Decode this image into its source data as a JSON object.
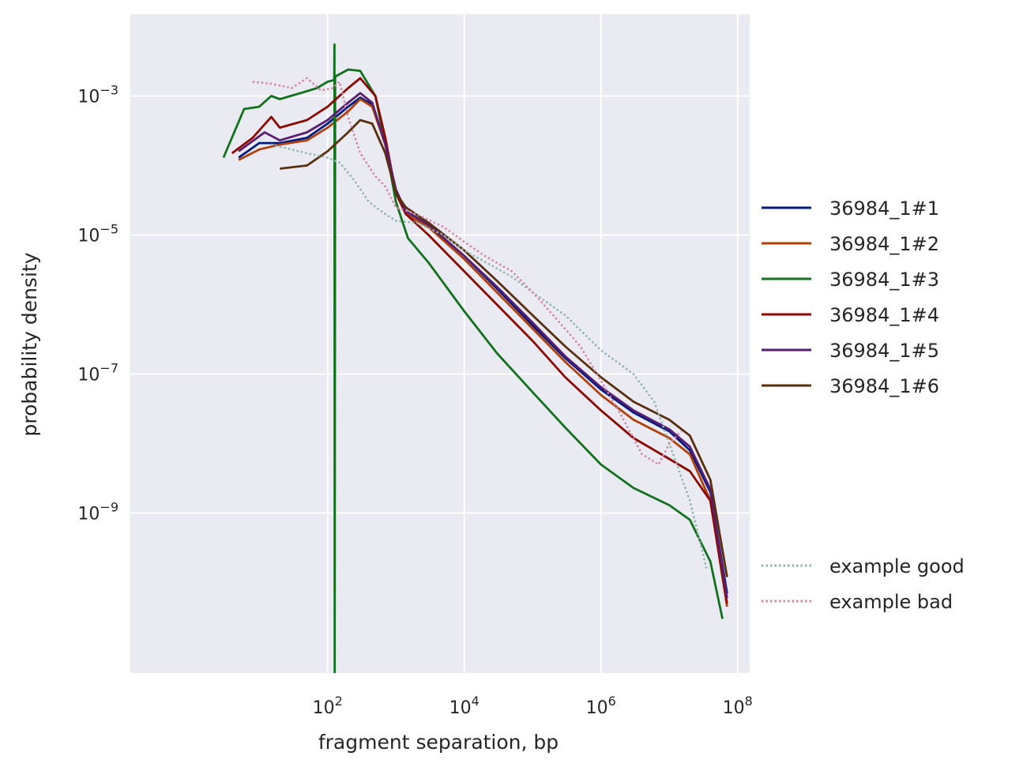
{
  "chart_data": {
    "type": "line",
    "xlabel": "fragment separation, bp",
    "ylabel": "probability density",
    "xscale": "log",
    "yscale": "log",
    "xlim": [
      0.13,
      150000000.0
    ],
    "ylim": [
      5e-12,
      0.015
    ],
    "x_ticks": [
      {
        "value": 100,
        "base": "10",
        "exp": "2"
      },
      {
        "value": 10000,
        "base": "10",
        "exp": "4"
      },
      {
        "value": 1000000,
        "base": "10",
        "exp": "6"
      },
      {
        "value": 100000000,
        "base": "10",
        "exp": "8"
      }
    ],
    "y_ticks": [
      {
        "value": 0.001,
        "base": "10",
        "exp": "−3"
      },
      {
        "value": 1e-05,
        "base": "10",
        "exp": "−5"
      },
      {
        "value": 1e-07,
        "base": "10",
        "exp": "−7"
      },
      {
        "value": 1e-09,
        "base": "10",
        "exp": "−9"
      }
    ],
    "grid": true,
    "background": "#eaeaf2",
    "legend_position": "right",
    "series": [
      {
        "name": "36984_1#1",
        "color": "#001c7f",
        "style": "solid",
        "points": [
          [
            5,
            0.00013
          ],
          [
            10,
            0.00021
          ],
          [
            20,
            0.00021
          ],
          [
            50,
            0.00025
          ],
          [
            100,
            0.0004
          ],
          [
            200,
            0.0007
          ],
          [
            300,
            0.00095
          ],
          [
            450,
            0.00075
          ],
          [
            700,
            0.0002
          ],
          [
            1000,
            4e-05
          ],
          [
            1400,
            2.2e-05
          ],
          [
            3000,
            1.4e-05
          ],
          [
            10000,
            5e-06
          ],
          [
            30000,
            1.7e-06
          ],
          [
            100000,
            5e-07
          ],
          [
            300000,
            1.7e-07
          ],
          [
            1000000,
            6e-08
          ],
          [
            3000000,
            2.8e-08
          ],
          [
            10000000,
            1.5e-08
          ],
          [
            20000000,
            8e-09
          ],
          [
            40000000,
            2e-09
          ],
          [
            70000000,
            7e-11
          ]
        ]
      },
      {
        "name": "36984_1#2",
        "color": "#b1400d",
        "style": "solid",
        "points": [
          [
            5,
            0.00012
          ],
          [
            10,
            0.00017
          ],
          [
            20,
            0.0002
          ],
          [
            50,
            0.00023
          ],
          [
            100,
            0.00035
          ],
          [
            200,
            0.0006
          ],
          [
            300,
            0.0009
          ],
          [
            450,
            0.0007
          ],
          [
            700,
            0.0002
          ],
          [
            1000,
            4e-05
          ],
          [
            1400,
            2e-05
          ],
          [
            3000,
            1.3e-05
          ],
          [
            10000,
            4.5e-06
          ],
          [
            30000,
            1.5e-06
          ],
          [
            100000,
            4.5e-07
          ],
          [
            300000,
            1.5e-07
          ],
          [
            1000000,
            5e-08
          ],
          [
            3000000,
            2.2e-08
          ],
          [
            10000000,
            1.2e-08
          ],
          [
            20000000,
            7e-09
          ],
          [
            40000000,
            1.5e-09
          ],
          [
            70000000,
            4.5e-11
          ]
        ]
      },
      {
        "name": "36984_1#3",
        "color": "#12711c",
        "style": "solid",
        "points": [
          [
            3,
            0.00013
          ],
          [
            6,
            0.00065
          ],
          [
            10,
            0.0007
          ],
          [
            15,
            0.001
          ],
          [
            20,
            0.0009
          ],
          [
            40,
            0.0011
          ],
          [
            70,
            0.0013
          ],
          [
            100,
            0.0016
          ],
          [
            125,
            0.0017
          ],
          [
            126,
            0.0055
          ],
          [
            127,
            5e-12
          ],
          [
            129,
            0.0019
          ],
          [
            200,
            0.0024
          ],
          [
            300,
            0.0023
          ],
          [
            500,
            0.001
          ],
          [
            700,
            0.0002
          ],
          [
            1000,
            3e-05
          ],
          [
            1500,
            9e-06
          ],
          [
            3000,
            4e-06
          ],
          [
            10000,
            8e-07
          ],
          [
            30000,
            2e-07
          ],
          [
            100000,
            5.5e-08
          ],
          [
            300000,
            1.7e-08
          ],
          [
            1000000,
            5e-09
          ],
          [
            3000000,
            2.3e-09
          ],
          [
            10000000,
            1.3e-09
          ],
          [
            20000000,
            8e-10
          ],
          [
            40000000,
            2e-10
          ],
          [
            60000000,
            3e-11
          ]
        ]
      },
      {
        "name": "36984_1#4",
        "color": "#8c0800",
        "style": "solid",
        "points": [
          [
            4,
            0.00015
          ],
          [
            8,
            0.00025
          ],
          [
            15,
            0.0005
          ],
          [
            20,
            0.00035
          ],
          [
            50,
            0.00045
          ],
          [
            100,
            0.0007
          ],
          [
            200,
            0.0013
          ],
          [
            300,
            0.0018
          ],
          [
            500,
            0.001
          ],
          [
            700,
            0.00025
          ],
          [
            1000,
            4e-05
          ],
          [
            1400,
            2e-05
          ],
          [
            3000,
            1e-05
          ],
          [
            10000,
            3e-06
          ],
          [
            30000,
            1e-06
          ],
          [
            100000,
            3e-07
          ],
          [
            300000,
            9e-08
          ],
          [
            1000000,
            3e-08
          ],
          [
            3000000,
            1.2e-08
          ],
          [
            10000000,
            6e-09
          ],
          [
            20000000,
            4e-09
          ],
          [
            40000000,
            1.5e-09
          ],
          [
            70000000,
            5e-11
          ]
        ]
      },
      {
        "name": "36984_1#5",
        "color": "#591e71",
        "style": "solid",
        "points": [
          [
            5,
            0.00016
          ],
          [
            12,
            0.0003
          ],
          [
            20,
            0.00023
          ],
          [
            50,
            0.0003
          ],
          [
            100,
            0.00045
          ],
          [
            200,
            0.0008
          ],
          [
            300,
            0.0011
          ],
          [
            450,
            0.0008
          ],
          [
            700,
            0.0002
          ],
          [
            1000,
            4.5e-05
          ],
          [
            1400,
            2.2e-05
          ],
          [
            3000,
            1.4e-05
          ],
          [
            10000,
            5e-06
          ],
          [
            30000,
            1.8e-06
          ],
          [
            100000,
            5.5e-07
          ],
          [
            300000,
            1.8e-07
          ],
          [
            1000000,
            6.5e-08
          ],
          [
            3000000,
            3e-08
          ],
          [
            10000000,
            1.6e-08
          ],
          [
            20000000,
            9e-09
          ],
          [
            40000000,
            2.2e-09
          ],
          [
            70000000,
            6e-11
          ]
        ]
      },
      {
        "name": "36984_1#6",
        "color": "#592f0d",
        "style": "solid",
        "points": [
          [
            20,
            9e-05
          ],
          [
            50,
            0.0001
          ],
          [
            100,
            0.00016
          ],
          [
            200,
            0.0003
          ],
          [
            300,
            0.00045
          ],
          [
            450,
            0.0004
          ],
          [
            700,
            0.00015
          ],
          [
            1000,
            4e-05
          ],
          [
            1400,
            2.5e-05
          ],
          [
            3000,
            1.5e-05
          ],
          [
            10000,
            6e-06
          ],
          [
            30000,
            2.2e-06
          ],
          [
            100000,
            7e-07
          ],
          [
            300000,
            2.5e-07
          ],
          [
            1000000,
            9e-08
          ],
          [
            3000000,
            4e-08
          ],
          [
            10000000,
            2.2e-08
          ],
          [
            20000000,
            1.3e-08
          ],
          [
            40000000,
            3e-09
          ],
          [
            70000000,
            1.2e-10
          ]
        ]
      },
      {
        "name": "example good",
        "color": "#8fb5ad",
        "style": "dotted",
        "points": [
          [
            15,
            0.0002
          ],
          [
            50,
            0.00015
          ],
          [
            100,
            0.00013
          ],
          [
            150,
            0.00011
          ],
          [
            250,
            6e-05
          ],
          [
            400,
            3e-05
          ],
          [
            700,
            2e-05
          ],
          [
            1000,
            1.6e-05
          ],
          [
            2000,
            1.5e-05
          ],
          [
            5000,
            1e-05
          ],
          [
            10000,
            6e-06
          ],
          [
            50000,
            2.5e-06
          ],
          [
            100000,
            1.5e-06
          ],
          [
            300000,
            7e-07
          ],
          [
            1000000,
            2.2e-07
          ],
          [
            3000000,
            1e-07
          ],
          [
            6000000,
            4e-08
          ],
          [
            10000000,
            1e-08
          ],
          [
            20000000,
            1.5e-09
          ],
          [
            35000000,
            1.6e-10
          ]
        ]
      },
      {
        "name": "example bad",
        "color": "#d486a6",
        "style": "dotted",
        "points": [
          [
            8,
            0.0016
          ],
          [
            15,
            0.0015
          ],
          [
            30,
            0.0013
          ],
          [
            50,
            0.0018
          ],
          [
            80,
            0.0012
          ],
          [
            120,
            0.0013
          ],
          [
            150,
            0.0016
          ],
          [
            200,
            0.0005
          ],
          [
            300,
            0.00015
          ],
          [
            500,
            7e-05
          ],
          [
            700,
            5e-05
          ],
          [
            1000,
            2.5e-05
          ],
          [
            2000,
            2e-05
          ],
          [
            5000,
            1.3e-05
          ],
          [
            10000,
            8e-06
          ],
          [
            20000,
            5e-06
          ],
          [
            50000,
            3e-06
          ],
          [
            100000,
            1.5e-06
          ],
          [
            200000,
            7e-07
          ],
          [
            500000,
            2.5e-07
          ],
          [
            1000000,
            8e-08
          ],
          [
            2000000,
            2.5e-08
          ],
          [
            4000000,
            7e-09
          ],
          [
            7000000,
            5e-09
          ],
          [
            10000000,
            1e-08
          ],
          [
            15000000,
            1.5e-08
          ]
        ]
      }
    ],
    "legend_groups": [
      [
        "36984_1#1",
        "36984_1#2",
        "36984_1#3",
        "36984_1#4",
        "36984_1#5",
        "36984_1#6"
      ],
      [
        "example good",
        "example bad"
      ]
    ]
  }
}
